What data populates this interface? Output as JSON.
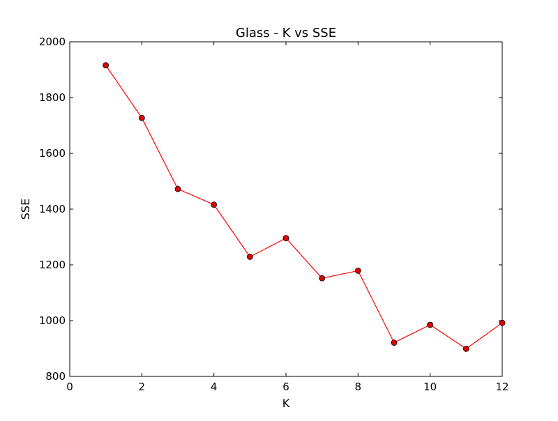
{
  "chart_data": {
    "type": "line",
    "title": "Glass - K vs SSE",
    "xlabel": "K",
    "ylabel": "SSE",
    "xlim": [
      0,
      12
    ],
    "ylim": [
      800,
      2000
    ],
    "xticks": [
      0,
      2,
      4,
      6,
      8,
      10,
      12
    ],
    "yticks": [
      800,
      1000,
      1200,
      1400,
      1600,
      1800,
      2000
    ],
    "grid": false,
    "series": [
      {
        "x": [
          1,
          2,
          3,
          4,
          5,
          6,
          7,
          8,
          9,
          10,
          11,
          12
        ],
        "y": [
          1916,
          1727,
          1472,
          1416,
          1229,
          1296,
          1152,
          1179,
          921,
          985,
          899,
          992
        ],
        "line_color": "#ff0000",
        "marker": "circle",
        "marker_color": "#dd0000",
        "marker_edge_color": "#000000"
      }
    ]
  }
}
